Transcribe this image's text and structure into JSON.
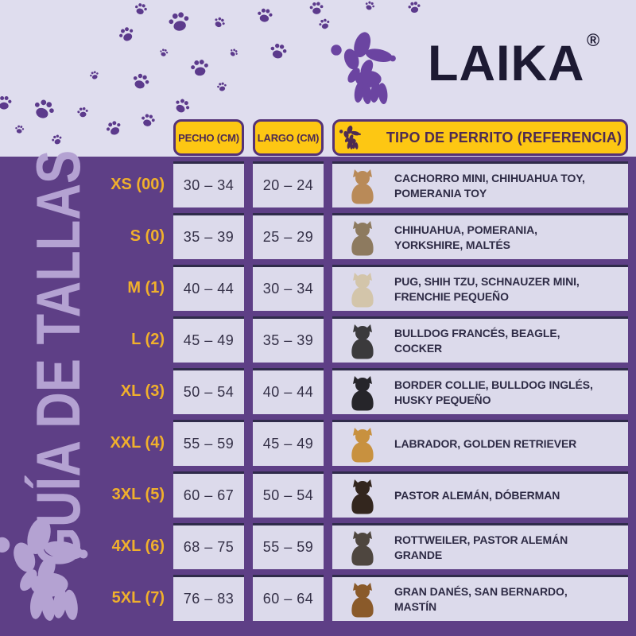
{
  "brand": {
    "logo_text": "LAIKA",
    "registered_mark": "®"
  },
  "page": {
    "vertical_title": "GUÍA DE TALLAS"
  },
  "table": {
    "headers": {
      "chest": "PECHO (CM)",
      "length": "LARGO (CM)",
      "reference": "TIPO DE PERRITO (REFERENCIA)"
    },
    "rows": [
      {
        "size": "XS (00)",
        "chest": "30 – 34",
        "length": "20 – 24",
        "breeds": "CACHORRO MINI, CHIHUAHUA TOY, POMERANIA TOY",
        "dog_color": "#b98a58"
      },
      {
        "size": "S (0)",
        "chest": "35 – 39",
        "length": "25 – 29",
        "breeds": "CHIHUAHUA, POMERANIA, YORKSHIRE, MALTÉS",
        "dog_color": "#8d7a5f"
      },
      {
        "size": "M (1)",
        "chest": "40 – 44",
        "length": "30 – 34",
        "breeds": "PUG, SHIH TZU, SCHNAUZER MINI, FRENCHIE PEQUEÑO",
        "dog_color": "#d3c5aa"
      },
      {
        "size": "L (2)",
        "chest": "45 – 49",
        "length": "35 – 39",
        "breeds": "BULLDOG FRANCÉS, BEAGLE, COCKER",
        "dog_color": "#3b3a3c"
      },
      {
        "size": "XL (3)",
        "chest": "50 – 54",
        "length": "40 – 44",
        "breeds": "BORDER COLLIE, BULLDOG INGLÉS, HUSKY PEQUEÑO",
        "dog_color": "#26252a"
      },
      {
        "size": "XXL (4)",
        "chest": "55 – 59",
        "length": "45 – 49",
        "breeds": "LABRADOR, GOLDEN RETRIEVER",
        "dog_color": "#c8913f"
      },
      {
        "size": "3XL (5)",
        "chest": "60 – 67",
        "length": "50 – 54",
        "breeds": "PASTOR ALEMÁN, DÓBERMAN",
        "dog_color": "#33261e"
      },
      {
        "size": "4XL (6)",
        "chest": "68 – 75",
        "length": "55 – 59",
        "breeds": "ROTTWEILER, PASTOR ALEMÁN GRANDE",
        "dog_color": "#4e463f"
      },
      {
        "size": "5XL (7)",
        "chest": "76 – 83",
        "length": "60 – 64",
        "breeds": "GRAN DANÉS, SAN BERNARDO, MASTÍN",
        "dog_color": "#8a5a2a"
      }
    ]
  },
  "colors": {
    "background_lavender": "#dfddee",
    "panel_purple": "#5e3f86",
    "paw_purple": "#5c3a8c",
    "header_yellow": "#fdc713",
    "header_border_purple": "#543277",
    "header_text_purple": "#4d2a52",
    "size_label_gold": "#f0b02c",
    "cell_lavender": "#dcdaeb",
    "cell_border_navy": "#2f2b4a",
    "logo_navy": "#1d1a33",
    "logo_balloon_purple": "#6b44a1",
    "light_purple_accent": "#b4a2d2"
  }
}
